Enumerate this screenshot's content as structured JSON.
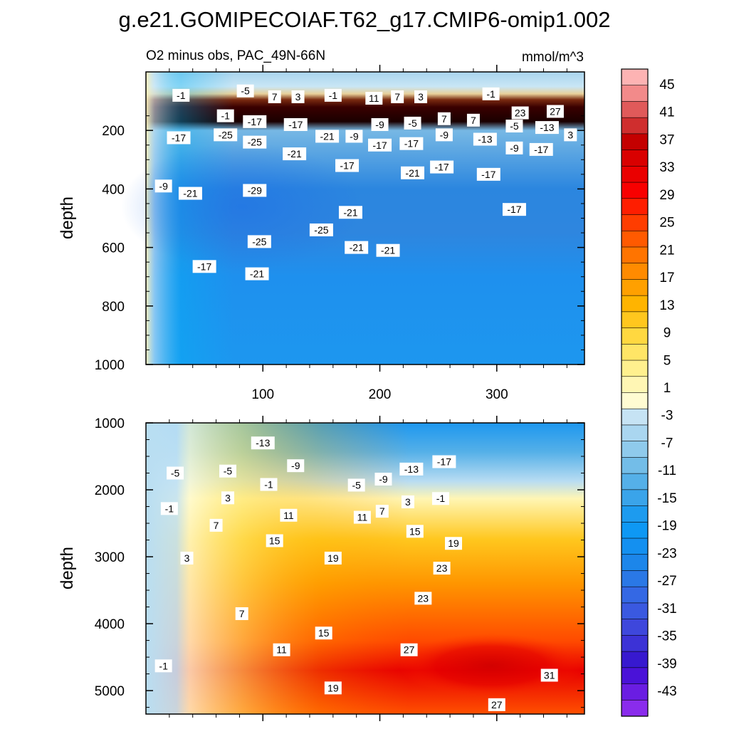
{
  "chart_data": [
    {
      "type": "contour",
      "title": "g.e21.GOMIPECOIAF.T62_g17.CMIP6-omip1.002",
      "subtitle": "O2 minus obs, PAC_49N-66N",
      "units": "mmol/m^3",
      "ylabel": "depth",
      "xlim": [
        0,
        375
      ],
      "ylim": [
        1000,
        0
      ],
      "xticks": [
        100,
        200,
        300
      ],
      "yticks": [
        200,
        400,
        600,
        800,
        1000
      ],
      "contour_labels": [
        {
          "v": "-1",
          "x": 30,
          "y": 80
        },
        {
          "v": "-5",
          "x": 85,
          "y": 65
        },
        {
          "v": "7",
          "x": 110,
          "y": 85
        },
        {
          "v": "3",
          "x": 130,
          "y": 85
        },
        {
          "v": "-1",
          "x": 160,
          "y": 80
        },
        {
          "v": "11",
          "x": 195,
          "y": 90
        },
        {
          "v": "7",
          "x": 215,
          "y": 85
        },
        {
          "v": "3",
          "x": 235,
          "y": 85
        },
        {
          "v": "-1",
          "x": 295,
          "y": 75
        },
        {
          "v": "23",
          "x": 320,
          "y": 140
        },
        {
          "v": "27",
          "x": 350,
          "y": 135
        },
        {
          "v": "-1",
          "x": 68,
          "y": 150
        },
        {
          "v": "-17",
          "x": 93,
          "y": 170
        },
        {
          "v": "-17",
          "x": 128,
          "y": 180
        },
        {
          "v": "-9",
          "x": 200,
          "y": 180
        },
        {
          "v": "-5",
          "x": 228,
          "y": 175
        },
        {
          "v": "7",
          "x": 255,
          "y": 160
        },
        {
          "v": "7",
          "x": 280,
          "y": 165
        },
        {
          "v": "-5",
          "x": 315,
          "y": 185
        },
        {
          "v": "-13",
          "x": 343,
          "y": 190
        },
        {
          "v": "3",
          "x": 363,
          "y": 215
        },
        {
          "v": "-17",
          "x": 28,
          "y": 225
        },
        {
          "v": "-25",
          "x": 68,
          "y": 215
        },
        {
          "v": "-25",
          "x": 93,
          "y": 240
        },
        {
          "v": "-21",
          "x": 155,
          "y": 220
        },
        {
          "v": "-9",
          "x": 178,
          "y": 220
        },
        {
          "v": "-17",
          "x": 200,
          "y": 250
        },
        {
          "v": "-17",
          "x": 227,
          "y": 245
        },
        {
          "v": "-9",
          "x": 255,
          "y": 215
        },
        {
          "v": "-13",
          "x": 290,
          "y": 230
        },
        {
          "v": "-9",
          "x": 315,
          "y": 260
        },
        {
          "v": "-17",
          "x": 338,
          "y": 265
        },
        {
          "v": "-21",
          "x": 127,
          "y": 280
        },
        {
          "v": "-17",
          "x": 172,
          "y": 320
        },
        {
          "v": "-21",
          "x": 228,
          "y": 345
        },
        {
          "v": "-17",
          "x": 253,
          "y": 325
        },
        {
          "v": "-17",
          "x": 293,
          "y": 350
        },
        {
          "v": "-9",
          "x": 15,
          "y": 390
        },
        {
          "v": "-21",
          "x": 38,
          "y": 415
        },
        {
          "v": "-29",
          "x": 93,
          "y": 405
        },
        {
          "v": "-17",
          "x": 315,
          "y": 470
        },
        {
          "v": "-21",
          "x": 175,
          "y": 480
        },
        {
          "v": "-25",
          "x": 150,
          "y": 540
        },
        {
          "v": "-25",
          "x": 97,
          "y": 580
        },
        {
          "v": "-21",
          "x": 180,
          "y": 600
        },
        {
          "v": "-21",
          "x": 207,
          "y": 610
        },
        {
          "v": "-17",
          "x": 50,
          "y": 665
        },
        {
          "v": "-21",
          "x": 95,
          "y": 690
        }
      ]
    },
    {
      "type": "contour",
      "ylabel": "depth",
      "xlim": [
        0,
        375
      ],
      "ylim": [
        5350,
        1000
      ],
      "yticks": [
        1000,
        2000,
        3000,
        4000,
        5000
      ],
      "contour_labels": [
        {
          "v": "-13",
          "x": 100,
          "y": 1300
        },
        {
          "v": "-9",
          "x": 128,
          "y": 1640
        },
        {
          "v": "-5",
          "x": 25,
          "y": 1750
        },
        {
          "v": "-5",
          "x": 70,
          "y": 1720
        },
        {
          "v": "-1",
          "x": 105,
          "y": 1920
        },
        {
          "v": "-5",
          "x": 180,
          "y": 1930
        },
        {
          "v": "-9",
          "x": 203,
          "y": 1840
        },
        {
          "v": "-13",
          "x": 227,
          "y": 1690
        },
        {
          "v": "-17",
          "x": 255,
          "y": 1580
        },
        {
          "v": "3",
          "x": 70,
          "y": 2120
        },
        {
          "v": "-1",
          "x": 20,
          "y": 2280
        },
        {
          "v": "-1",
          "x": 252,
          "y": 2130
        },
        {
          "v": "3",
          "x": 224,
          "y": 2180
        },
        {
          "v": "7",
          "x": 202,
          "y": 2320
        },
        {
          "v": "11",
          "x": 122,
          "y": 2380
        },
        {
          "v": "11",
          "x": 185,
          "y": 2410
        },
        {
          "v": "7",
          "x": 60,
          "y": 2530
        },
        {
          "v": "15",
          "x": 230,
          "y": 2620
        },
        {
          "v": "15",
          "x": 110,
          "y": 2760
        },
        {
          "v": "19",
          "x": 263,
          "y": 2800
        },
        {
          "v": "3",
          "x": 35,
          "y": 3020
        },
        {
          "v": "19",
          "x": 160,
          "y": 3020
        },
        {
          "v": "23",
          "x": 253,
          "y": 3170
        },
        {
          "v": "23",
          "x": 237,
          "y": 3620
        },
        {
          "v": "7",
          "x": 82,
          "y": 3850
        },
        {
          "v": "15",
          "x": 152,
          "y": 4140
        },
        {
          "v": "11",
          "x": 116,
          "y": 4390
        },
        {
          "v": "27",
          "x": 225,
          "y": 4390
        },
        {
          "v": "-1",
          "x": 15,
          "y": 4630
        },
        {
          "v": "31",
          "x": 345,
          "y": 4770
        },
        {
          "v": "19",
          "x": 160,
          "y": 4960
        },
        {
          "v": "27",
          "x": 300,
          "y": 5210
        }
      ]
    },
    {
      "type": "colorbar",
      "labels": [
        "45",
        "41",
        "37",
        "33",
        "29",
        "25",
        "21",
        "17",
        "13",
        "9",
        "5",
        "1",
        "-3",
        "-7",
        "-11",
        "-15",
        "-19",
        "-23",
        "-27",
        "-31",
        "-35",
        "-39",
        "-43"
      ],
      "colors": [
        "#fdb3b3",
        "#f28a8a",
        "#e05a5a",
        "#cf2e2e",
        "#c40000",
        "#d90000",
        "#ea0000",
        "#f80000",
        "#fe1e00",
        "#ff3d00",
        "#ff5a00",
        "#ff7400",
        "#ff8b00",
        "#ffa000",
        "#ffb400",
        "#ffc71e",
        "#ffd840",
        "#ffe566",
        "#fff08e",
        "#fff6b4",
        "#fffbd2",
        "#c6e3f4",
        "#aad6f0",
        "#8fcaec",
        "#73bde8",
        "#55b0e8",
        "#3aa4ea",
        "#1d9bef",
        "#0e98f4",
        "#1490f0",
        "#1c86ea",
        "#2a78e6",
        "#3468e4",
        "#3a59e0",
        "#3e47dc",
        "#3c32d6",
        "#3719cf",
        "#4a12d8",
        "#6a1de2",
        "#8a2cec"
      ]
    }
  ]
}
